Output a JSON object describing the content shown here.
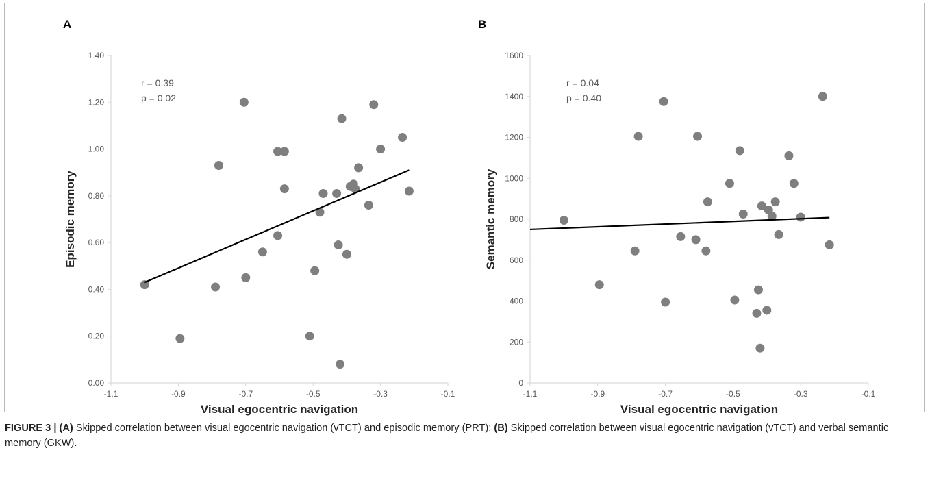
{
  "chart_data": [
    {
      "panel": "A",
      "type": "scatter",
      "xlabel": "Visual egocentric navigation",
      "ylabel": "Episodic memory",
      "xlim": [
        -1.1,
        -0.1
      ],
      "ylim": [
        0,
        1.4
      ],
      "xticks": [
        "-1.1",
        "-0.9",
        "-0.7",
        "-0.5",
        "-0.3",
        "-0.1"
      ],
      "xtick_values": [
        -1.1,
        -0.9,
        -0.7,
        -0.5,
        -0.3,
        -0.1
      ],
      "yticks": [
        "0.00",
        "0.20",
        "0.40",
        "0.60",
        "0.80",
        "1.00",
        "1.20",
        "1.40"
      ],
      "ytick_values": [
        0,
        0.2,
        0.4,
        0.6,
        0.8,
        1.0,
        1.2,
        1.4
      ],
      "annotations": [
        "r = 0.39",
        "p = 0.02"
      ],
      "points": [
        [
          -1.0,
          0.42
        ],
        [
          -0.895,
          0.19
        ],
        [
          -0.79,
          0.41
        ],
        [
          -0.78,
          0.93
        ],
        [
          -0.705,
          1.2
        ],
        [
          -0.7,
          0.45
        ],
        [
          -0.65,
          0.56
        ],
        [
          -0.605,
          0.99
        ],
        [
          -0.605,
          0.63
        ],
        [
          -0.585,
          0.99
        ],
        [
          -0.585,
          0.83
        ],
        [
          -0.51,
          0.2
        ],
        [
          -0.495,
          0.48
        ],
        [
          -0.48,
          0.73
        ],
        [
          -0.47,
          0.81
        ],
        [
          -0.43,
          0.81
        ],
        [
          -0.425,
          0.59
        ],
        [
          -0.42,
          0.08
        ],
        [
          -0.415,
          1.13
        ],
        [
          -0.4,
          0.55
        ],
        [
          -0.39,
          0.84
        ],
        [
          -0.38,
          0.85
        ],
        [
          -0.375,
          0.83
        ],
        [
          -0.365,
          0.92
        ],
        [
          -0.335,
          0.76
        ],
        [
          -0.32,
          1.19
        ],
        [
          -0.3,
          1.0
        ],
        [
          -0.235,
          1.05
        ],
        [
          -0.215,
          0.82
        ]
      ],
      "trendline": [
        [
          -1.0,
          0.43
        ],
        [
          -0.215,
          0.91
        ]
      ],
      "colors": {
        "points": "#7f7f7f",
        "line": "#000000",
        "axis": "#d9d9d9",
        "text": "#595959"
      }
    },
    {
      "panel": "B",
      "type": "scatter",
      "xlabel": "Visual egocentric navigation",
      "ylabel": "Semantic memory",
      "xlim": [
        -1.1,
        -0.1
      ],
      "ylim": [
        0,
        1600
      ],
      "xticks": [
        "-1.1",
        "-0.9",
        "-0.7",
        "-0.5",
        "-0.3",
        "-0.1"
      ],
      "xtick_values": [
        -1.1,
        -0.9,
        -0.7,
        -0.5,
        -0.3,
        -0.1
      ],
      "yticks": [
        "0",
        "200",
        "400",
        "600",
        "800",
        "1000",
        "1200",
        "1400",
        "1600"
      ],
      "ytick_values": [
        0,
        200,
        400,
        600,
        800,
        1000,
        1200,
        1400,
        1600
      ],
      "annotations": [
        "r = 0.04",
        "p = 0.40"
      ],
      "points": [
        [
          -1.0,
          795
        ],
        [
          -0.895,
          480
        ],
        [
          -0.79,
          645
        ],
        [
          -0.78,
          1205
        ],
        [
          -0.705,
          1375
        ],
        [
          -0.7,
          395
        ],
        [
          -0.655,
          715
        ],
        [
          -0.605,
          1205
        ],
        [
          -0.61,
          700
        ],
        [
          -0.58,
          645
        ],
        [
          -0.575,
          885
        ],
        [
          -0.51,
          975
        ],
        [
          -0.495,
          405
        ],
        [
          -0.48,
          1135
        ],
        [
          -0.47,
          825
        ],
        [
          -0.43,
          340
        ],
        [
          -0.425,
          455
        ],
        [
          -0.42,
          170
        ],
        [
          -0.415,
          865
        ],
        [
          -0.4,
          355
        ],
        [
          -0.395,
          845
        ],
        [
          -0.385,
          815
        ],
        [
          -0.375,
          885
        ],
        [
          -0.365,
          725
        ],
        [
          -0.335,
          1110
        ],
        [
          -0.32,
          975
        ],
        [
          -0.3,
          810
        ],
        [
          -0.235,
          1400
        ],
        [
          -0.215,
          675
        ]
      ],
      "trendline": [
        [
          -1.1,
          750
        ],
        [
          -0.215,
          808
        ]
      ],
      "colors": {
        "points": "#7f7f7f",
        "line": "#000000",
        "axis": "#d9d9d9",
        "text": "#595959"
      }
    }
  ],
  "caption": {
    "figure_label": "FIGURE 3 |",
    "part_a_label": "(A)",
    "part_a_text": " Skipped correlation between visual egocentric navigation (vTCT) and episodic memory (PRT); ",
    "part_b_label": "(B)",
    "part_b_text": " Skipped correlation between visual egocentric navigation (vTCT) and verbal semantic memory (GKW)."
  }
}
